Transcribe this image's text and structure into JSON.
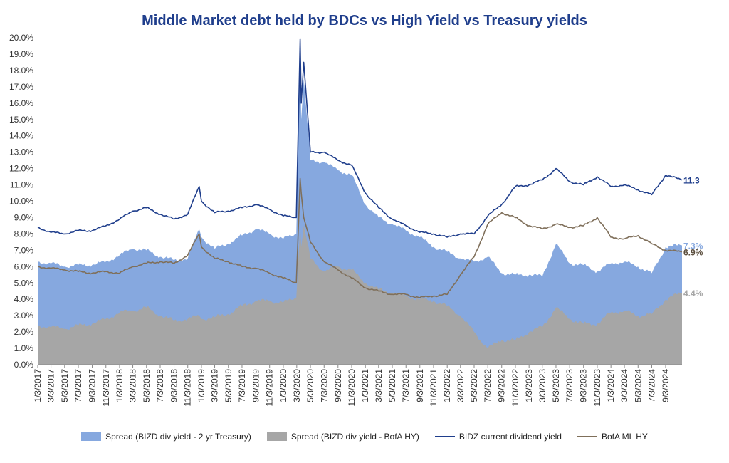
{
  "chart_data": {
    "type": "area",
    "title": "Middle Market debt held by BDCs vs High Yield vs Treasury yields",
    "ylim": [
      0,
      20
    ],
    "y_ticks": [
      "0.0%",
      "1.0%",
      "2.0%",
      "3.0%",
      "4.0%",
      "5.0%",
      "6.0%",
      "7.0%",
      "8.0%",
      "9.0%",
      "10.0%",
      "11.0%",
      "12.0%",
      "13.0%",
      "14.0%",
      "15.0%",
      "16.0%",
      "17.0%",
      "18.0%",
      "19.0%",
      "20.0%"
    ],
    "x_ticks": [
      "1/3/2017",
      "3/3/2017",
      "5/3/2017",
      "7/3/2017",
      "9/3/2017",
      "11/3/2017",
      "1/3/2018",
      "3/3/2018",
      "5/3/2018",
      "7/3/2018",
      "9/3/2018",
      "11/3/2018",
      "1/3/2019",
      "3/3/2019",
      "5/3/2019",
      "7/3/2019",
      "9/3/2019",
      "11/3/2019",
      "1/3/2020",
      "3/3/2020",
      "5/3/2020",
      "7/3/2020",
      "9/3/2020",
      "11/3/2020",
      "1/3/2021",
      "3/3/2021",
      "5/3/2021",
      "7/3/2021",
      "9/3/2021",
      "11/3/2021",
      "1/3/2022",
      "3/3/2022",
      "5/3/2022",
      "7/3/2022",
      "9/3/2022",
      "11/3/2022",
      "1/3/2023",
      "3/3/2023",
      "5/3/2023",
      "7/3/2023",
      "9/3/2023",
      "11/3/2023",
      "1/3/2024",
      "3/3/2024",
      "5/3/2024",
      "7/3/2024",
      "9/3/2024"
    ],
    "x_range": [
      "1/3/2017",
      "11/15/2024"
    ],
    "grid": false,
    "legend_position": "bottom",
    "series": [
      {
        "name": "Spread (BIZD div yield - 2 yr Treasury)",
        "kind": "area",
        "color": "#86a8df",
        "end_label": "7.3%",
        "points": [
          [
            "1/3/2017",
            6.3
          ],
          [
            "3/3/2017",
            6.2
          ],
          [
            "5/3/2017",
            6.0
          ],
          [
            "7/3/2017",
            6.1
          ],
          [
            "9/3/2017",
            6.1
          ],
          [
            "11/3/2017",
            6.3
          ],
          [
            "1/3/2018",
            6.7
          ],
          [
            "3/3/2018",
            7.1
          ],
          [
            "5/3/2018",
            7.0
          ],
          [
            "7/3/2018",
            6.6
          ],
          [
            "9/3/2018",
            6.4
          ],
          [
            "11/3/2018",
            6.5
          ],
          [
            "12/24/2018",
            8.3
          ],
          [
            "1/3/2019",
            7.8
          ],
          [
            "3/3/2019",
            7.1
          ],
          [
            "5/3/2019",
            7.4
          ],
          [
            "7/3/2019",
            7.9
          ],
          [
            "9/3/2019",
            8.3
          ],
          [
            "11/3/2019",
            8.0
          ],
          [
            "1/3/2020",
            7.7
          ],
          [
            "3/1/2020",
            8.0
          ],
          [
            "3/18/2020",
            19.0
          ],
          [
            "3/23/2020",
            15.0
          ],
          [
            "4/3/2020",
            17.5
          ],
          [
            "5/3/2020",
            12.5
          ],
          [
            "7/3/2020",
            12.4
          ],
          [
            "9/3/2020",
            11.9
          ],
          [
            "11/3/2020",
            11.6
          ],
          [
            "1/3/2021",
            9.8
          ],
          [
            "3/3/2021",
            9.0
          ],
          [
            "5/3/2021",
            8.6
          ],
          [
            "7/3/2021",
            8.2
          ],
          [
            "9/3/2021",
            7.8
          ],
          [
            "11/3/2021",
            7.2
          ],
          [
            "1/3/2022",
            6.9
          ],
          [
            "3/3/2022",
            6.5
          ],
          [
            "5/3/2022",
            6.3
          ],
          [
            "7/3/2022",
            6.6
          ],
          [
            "9/3/2022",
            5.6
          ],
          [
            "11/3/2022",
            5.5
          ],
          [
            "1/3/2023",
            5.5
          ],
          [
            "3/3/2023",
            5.4
          ],
          [
            "5/3/2023",
            7.4
          ],
          [
            "7/3/2023",
            6.2
          ],
          [
            "9/3/2023",
            6.1
          ],
          [
            "11/3/2023",
            5.7
          ],
          [
            "1/3/2024",
            6.2
          ],
          [
            "3/3/2024",
            6.3
          ],
          [
            "5/3/2024",
            6.0
          ],
          [
            "7/3/2024",
            5.6
          ],
          [
            "9/3/2024",
            7.2
          ],
          [
            "11/15/2024",
            7.3
          ]
        ]
      },
      {
        "name": "Spread (BIZD div yield - BofA HY)",
        "kind": "area",
        "color": "#a6a6a6",
        "end_label": "4.4%",
        "points": [
          [
            "1/3/2017",
            2.4
          ],
          [
            "3/3/2017",
            2.3
          ],
          [
            "5/3/2017",
            2.2
          ],
          [
            "7/3/2017",
            2.4
          ],
          [
            "9/3/2017",
            2.5
          ],
          [
            "11/3/2017",
            2.8
          ],
          [
            "1/3/2018",
            3.2
          ],
          [
            "3/3/2018",
            3.3
          ],
          [
            "5/3/2018",
            3.5
          ],
          [
            "7/3/2018",
            3.0
          ],
          [
            "9/3/2018",
            2.7
          ],
          [
            "11/3/2018",
            2.8
          ],
          [
            "12/24/2018",
            3.0
          ],
          [
            "1/3/2019",
            2.8
          ],
          [
            "3/3/2019",
            2.9
          ],
          [
            "5/3/2019",
            3.1
          ],
          [
            "7/3/2019",
            3.6
          ],
          [
            "9/3/2019",
            3.9
          ],
          [
            "11/3/2019",
            3.9
          ],
          [
            "1/3/2020",
            3.8
          ],
          [
            "3/1/2020",
            4.1
          ],
          [
            "3/18/2020",
            8.5
          ],
          [
            "3/23/2020",
            7.2
          ],
          [
            "4/3/2020",
            8.5
          ],
          [
            "5/3/2020",
            6.5
          ],
          [
            "7/3/2020",
            5.7
          ],
          [
            "9/3/2020",
            6.0
          ],
          [
            "11/3/2020",
            5.8
          ],
          [
            "1/3/2021",
            5.0
          ],
          [
            "3/3/2021",
            4.6
          ],
          [
            "5/3/2021",
            4.4
          ],
          [
            "7/3/2021",
            4.2
          ],
          [
            "9/3/2021",
            4.0
          ],
          [
            "11/3/2021",
            3.9
          ],
          [
            "1/3/2022",
            3.6
          ],
          [
            "3/3/2022",
            3.0
          ],
          [
            "5/3/2022",
            2.0
          ],
          [
            "7/3/2022",
            1.0
          ],
          [
            "9/3/2022",
            1.5
          ],
          [
            "11/3/2022",
            1.5
          ],
          [
            "1/3/2023",
            2.0
          ],
          [
            "3/3/2023",
            2.3
          ],
          [
            "5/3/2023",
            3.5
          ],
          [
            "7/3/2023",
            2.8
          ],
          [
            "9/3/2023",
            2.5
          ],
          [
            "11/3/2023",
            2.5
          ],
          [
            "1/3/2024",
            3.2
          ],
          [
            "3/3/2024",
            3.3
          ],
          [
            "5/3/2024",
            3.0
          ],
          [
            "7/3/2024",
            3.1
          ],
          [
            "9/3/2024",
            4.0
          ],
          [
            "11/15/2024",
            4.4
          ]
        ]
      },
      {
        "name": "BIDZ current dividend yield",
        "kind": "line",
        "color": "#1f3e8c",
        "end_label": "11.3",
        "points": [
          [
            "1/3/2017",
            8.4
          ],
          [
            "3/3/2017",
            8.1
          ],
          [
            "5/3/2017",
            8.0
          ],
          [
            "7/3/2017",
            8.2
          ],
          [
            "9/3/2017",
            8.2
          ],
          [
            "11/3/2017",
            8.5
          ],
          [
            "1/3/2018",
            8.9
          ],
          [
            "3/3/2018",
            9.4
          ],
          [
            "5/3/2018",
            9.6
          ],
          [
            "7/3/2018",
            9.2
          ],
          [
            "9/3/2018",
            8.9
          ],
          [
            "11/3/2018",
            9.2
          ],
          [
            "12/24/2018",
            10.9
          ],
          [
            "1/3/2019",
            10.0
          ],
          [
            "3/3/2019",
            9.3
          ],
          [
            "5/3/2019",
            9.4
          ],
          [
            "7/3/2019",
            9.6
          ],
          [
            "9/3/2019",
            9.8
          ],
          [
            "11/3/2019",
            9.5
          ],
          [
            "1/3/2020",
            9.1
          ],
          [
            "3/1/2020",
            9.0
          ],
          [
            "3/18/2020",
            19.9
          ],
          [
            "3/23/2020",
            16.0
          ],
          [
            "4/3/2020",
            18.5
          ],
          [
            "5/3/2020",
            13.0
          ],
          [
            "7/3/2020",
            13.0
          ],
          [
            "9/3/2020",
            12.5
          ],
          [
            "11/3/2020",
            12.2
          ],
          [
            "1/3/2021",
            10.5
          ],
          [
            "3/3/2021",
            9.6
          ],
          [
            "5/3/2021",
            8.9
          ],
          [
            "7/3/2021",
            8.5
          ],
          [
            "9/3/2021",
            8.1
          ],
          [
            "11/3/2021",
            8.0
          ],
          [
            "1/3/2022",
            7.8
          ],
          [
            "3/3/2022",
            8.0
          ],
          [
            "5/3/2022",
            8.0
          ],
          [
            "7/3/2022",
            9.1
          ],
          [
            "9/3/2022",
            9.8
          ],
          [
            "11/3/2022",
            10.9
          ],
          [
            "1/3/2023",
            11.0
          ],
          [
            "3/3/2023",
            11.3
          ],
          [
            "5/3/2023",
            12.0
          ],
          [
            "7/3/2023",
            11.2
          ],
          [
            "9/3/2023",
            11.0
          ],
          [
            "11/3/2023",
            11.5
          ],
          [
            "1/3/2024",
            10.9
          ],
          [
            "3/3/2024",
            11.0
          ],
          [
            "5/3/2024",
            10.7
          ],
          [
            "7/3/2024",
            10.4
          ],
          [
            "9/3/2024",
            11.6
          ],
          [
            "11/15/2024",
            11.3
          ]
        ]
      },
      {
        "name": "BofA ML HY",
        "kind": "line",
        "color": "#7f6f5a",
        "end_label": "6.9%",
        "points": [
          [
            "1/3/2017",
            6.0
          ],
          [
            "3/3/2017",
            5.9
          ],
          [
            "5/3/2017",
            5.8
          ],
          [
            "7/3/2017",
            5.7
          ],
          [
            "9/3/2017",
            5.6
          ],
          [
            "11/3/2017",
            5.7
          ],
          [
            "1/3/2018",
            5.6
          ],
          [
            "3/3/2018",
            6.0
          ],
          [
            "5/3/2018",
            6.2
          ],
          [
            "7/3/2018",
            6.3
          ],
          [
            "9/3/2018",
            6.2
          ],
          [
            "11/3/2018",
            6.7
          ],
          [
            "12/24/2018",
            8.0
          ],
          [
            "1/3/2019",
            7.2
          ],
          [
            "3/3/2019",
            6.5
          ],
          [
            "5/3/2019",
            6.3
          ],
          [
            "7/3/2019",
            6.0
          ],
          [
            "9/3/2019",
            5.9
          ],
          [
            "11/3/2019",
            5.6
          ],
          [
            "1/3/2020",
            5.3
          ],
          [
            "3/1/2020",
            5.0
          ],
          [
            "3/18/2020",
            11.4
          ],
          [
            "3/23/2020",
            10.5
          ],
          [
            "4/3/2020",
            9.0
          ],
          [
            "5/3/2020",
            7.5
          ],
          [
            "7/3/2020",
            6.3
          ],
          [
            "9/3/2020",
            5.8
          ],
          [
            "11/3/2020",
            5.3
          ],
          [
            "1/3/2021",
            4.7
          ],
          [
            "3/3/2021",
            4.5
          ],
          [
            "5/3/2021",
            4.3
          ],
          [
            "7/3/2021",
            4.3
          ],
          [
            "9/3/2021",
            4.1
          ],
          [
            "11/3/2021",
            4.2
          ],
          [
            "1/3/2022",
            4.3
          ],
          [
            "3/3/2022",
            5.5
          ],
          [
            "5/3/2022",
            6.6
          ],
          [
            "7/3/2022",
            8.6
          ],
          [
            "9/3/2022",
            9.3
          ],
          [
            "11/3/2022",
            9.0
          ],
          [
            "1/3/2023",
            8.5
          ],
          [
            "3/3/2023",
            8.3
          ],
          [
            "5/3/2023",
            8.6
          ],
          [
            "7/3/2023",
            8.4
          ],
          [
            "9/3/2023",
            8.5
          ],
          [
            "11/3/2023",
            9.0
          ],
          [
            "1/3/2024",
            7.8
          ],
          [
            "3/3/2024",
            7.7
          ],
          [
            "5/3/2024",
            7.9
          ],
          [
            "7/3/2024",
            7.4
          ],
          [
            "9/3/2024",
            7.0
          ],
          [
            "11/15/2024",
            6.9
          ]
        ]
      }
    ]
  }
}
